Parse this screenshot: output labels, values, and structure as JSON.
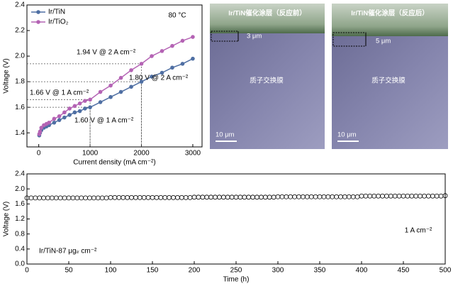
{
  "chart_data": [
    {
      "type": "line",
      "x_label": "Current density (mA cm⁻²)",
      "y_label": "Voltage (V)",
      "annotations": [
        "80 °C",
        "1.94 V @ 2 A cm⁻²",
        "1.66 V @ 1 A cm⁻²",
        "1.80 V @ 2 A cm⁻²",
        "1.60 V @ 1 A cm⁻²"
      ],
      "legend": "upper left",
      "x": [
        10,
        25,
        50,
        100,
        150,
        200,
        300,
        400,
        500,
        600,
        700,
        800,
        900,
        1000,
        1200,
        1400,
        1600,
        1800,
        2000,
        2200,
        2400,
        2600,
        2800,
        3000
      ],
      "series": [
        {
          "name": "Ir/TiN",
          "color": "#4f6fa3",
          "values": [
            1.38,
            1.4,
            1.42,
            1.44,
            1.45,
            1.46,
            1.48,
            1.5,
            1.52,
            1.54,
            1.56,
            1.57,
            1.59,
            1.6,
            1.64,
            1.68,
            1.72,
            1.76,
            1.8,
            1.84,
            1.87,
            1.91,
            1.94,
            1.98
          ]
        },
        {
          "name": "Ir/TiO₂",
          "color": "#b463b4",
          "values": [
            1.39,
            1.41,
            1.44,
            1.46,
            1.47,
            1.48,
            1.51,
            1.53,
            1.56,
            1.59,
            1.61,
            1.63,
            1.65,
            1.66,
            1.72,
            1.77,
            1.83,
            1.89,
            1.94,
            2.0,
            2.04,
            2.08,
            2.12,
            2.15
          ]
        }
      ],
      "xlim": [
        -230,
        3180
      ],
      "xticks": [
        0,
        1000,
        2000,
        3000
      ],
      "ylim": [
        1.29,
        2.4
      ],
      "yticks": [
        1.4,
        1.6,
        1.8,
        {
          "value": 2,
          "label": "2.0"
        },
        2.2,
        2.4
      ]
    },
    {
      "type": "scatter",
      "x_label": "Time (h)",
      "y_label": "Voltage (V)",
      "annotations": [
        "1 A cm⁻²",
        "Ir/TiN-87 μgᵢᵣ cm⁻²"
      ],
      "x": [
        0,
        5,
        10,
        15,
        20,
        25,
        30,
        35,
        40,
        45,
        50,
        55,
        60,
        65,
        70,
        75,
        80,
        85,
        90,
        95,
        100,
        105,
        110,
        115,
        120,
        125,
        130,
        135,
        140,
        145,
        150,
        155,
        160,
        165,
        170,
        175,
        180,
        185,
        190,
        195,
        200,
        205,
        210,
        215,
        220,
        225,
        230,
        235,
        240,
        245,
        250,
        255,
        260,
        265,
        270,
        275,
        280,
        285,
        290,
        295,
        300,
        305,
        310,
        315,
        320,
        325,
        330,
        335,
        340,
        345,
        350,
        355,
        360,
        365,
        370,
        375,
        380,
        385,
        390,
        395,
        400,
        405,
        410,
        415,
        420,
        425,
        430,
        435,
        440,
        445,
        450,
        455,
        460,
        465,
        470,
        475,
        480,
        485,
        490,
        495,
        500
      ],
      "series": [
        {
          "name": "Ir/TiN",
          "color": "#000000",
          "values": [
            1.76,
            1.76,
            1.76,
            1.76,
            1.76,
            1.76,
            1.76,
            1.76,
            1.76,
            1.76,
            1.76,
            1.76,
            1.76,
            1.76,
            1.76,
            1.76,
            1.76,
            1.76,
            1.76,
            1.76,
            1.77,
            1.77,
            1.77,
            1.77,
            1.77,
            1.77,
            1.77,
            1.77,
            1.77,
            1.77,
            1.77,
            1.77,
            1.77,
            1.77,
            1.77,
            1.77,
            1.77,
            1.77,
            1.77,
            1.77,
            1.78,
            1.78,
            1.78,
            1.78,
            1.78,
            1.78,
            1.78,
            1.78,
            1.78,
            1.78,
            1.78,
            1.78,
            1.78,
            1.78,
            1.78,
            1.78,
            1.78,
            1.78,
            1.78,
            1.78,
            1.79,
            1.79,
            1.79,
            1.79,
            1.79,
            1.79,
            1.79,
            1.79,
            1.79,
            1.79,
            1.79,
            1.79,
            1.79,
            1.79,
            1.79,
            1.79,
            1.79,
            1.79,
            1.79,
            1.79,
            1.81,
            1.81,
            1.81,
            1.81,
            1.81,
            1.81,
            1.81,
            1.81,
            1.81,
            1.81,
            1.81,
            1.81,
            1.81,
            1.81,
            1.81,
            1.81,
            1.81,
            1.81,
            1.81,
            1.81,
            1.82
          ]
        }
      ],
      "xlim": [
        0,
        500
      ],
      "xticks": [
        0,
        50,
        100,
        150,
        200,
        250,
        300,
        350,
        400,
        450,
        500
      ],
      "ylim": [
        0,
        2.4
      ],
      "yticks": [
        {
          "value": 0,
          "label": "0.0"
        },
        0.4,
        0.8,
        1.2,
        1.6,
        {
          "value": 2,
          "label": "2.0"
        },
        2.4
      ]
    }
  ],
  "images": [
    {
      "title": "Ir/TiN催化涂层（反应前）",
      "thickness": "3 μm",
      "membrane": "质子交换膜",
      "scale_bar": "10 μm"
    },
    {
      "title": "Ir/TiN催化涂层（反应后）",
      "thickness": "5 μm",
      "membrane": "质子交换膜",
      "scale_bar": "10 μm"
    }
  ]
}
